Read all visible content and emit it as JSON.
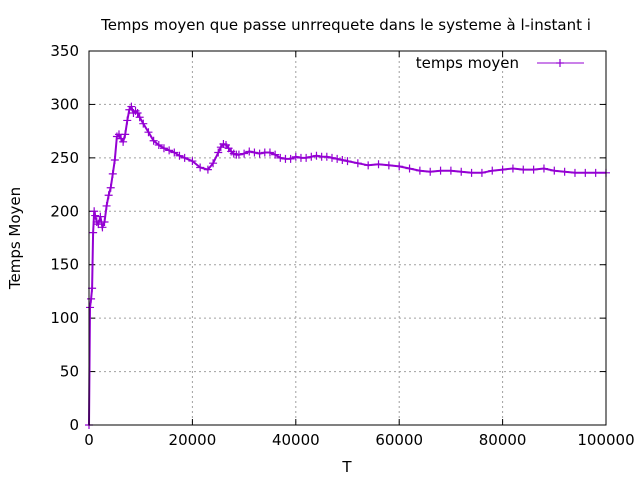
{
  "chart_data": {
    "type": "line",
    "title": "Temps moyen que passe unrrequete dans le systeme à l-instant i",
    "xlabel": "T",
    "ylabel": "Temps Moyen",
    "xlim": [
      0,
      100000
    ],
    "ylim": [
      0,
      350
    ],
    "xticks": [
      0,
      20000,
      40000,
      60000,
      80000,
      100000
    ],
    "xtick_labels": [
      "0",
      "20000",
      "40000",
      "60000",
      "80000",
      "100000"
    ],
    "yticks": [
      0,
      50,
      100,
      150,
      200,
      250,
      300,
      350
    ],
    "ytick_labels": [
      "0",
      "50",
      "100",
      "150",
      "200",
      "250",
      "300",
      "350"
    ],
    "grid": true,
    "legend_position": "top-right",
    "series": [
      {
        "name": "temps moyen",
        "color": "#9400d3",
        "marker": "plus",
        "x": [
          0,
          200,
          400,
          600,
          800,
          1000,
          1200,
          1500,
          1800,
          2200,
          2600,
          3000,
          3400,
          3800,
          4200,
          4600,
          5000,
          5400,
          5800,
          6200,
          6600,
          7000,
          7400,
          7800,
          8200,
          8600,
          9000,
          9400,
          9800,
          10500,
          11500,
          12500,
          13500,
          14500,
          15500,
          16500,
          17500,
          18500,
          20000,
          21500,
          23000,
          24000,
          25000,
          25500,
          26000,
          26500,
          27000,
          27500,
          28000,
          28500,
          29000,
          30000,
          31000,
          32000,
          33000,
          34000,
          35000,
          36000,
          37000,
          38000,
          39000,
          40000,
          41000,
          42000,
          43000,
          44000,
          45000,
          46000,
          47000,
          48000,
          49000,
          50000,
          52000,
          54000,
          56000,
          58000,
          60000,
          62000,
          64000,
          66000,
          68000,
          70000,
          72000,
          74000,
          76000,
          78000,
          80000,
          82000,
          84000,
          86000,
          88000,
          90000,
          92000,
          94000,
          96000,
          98000,
          100000
        ],
        "y": [
          0,
          110,
          118,
          128,
          180,
          200,
          196,
          190,
          188,
          195,
          185,
          190,
          205,
          215,
          222,
          235,
          248,
          270,
          272,
          268,
          265,
          272,
          285,
          295,
          298,
          292,
          294,
          292,
          288,
          282,
          274,
          266,
          262,
          259,
          257,
          255,
          252,
          250,
          247,
          241,
          239,
          245,
          255,
          260,
          263,
          262,
          259,
          256,
          254,
          253,
          253,
          254,
          256,
          255,
          254,
          255,
          255,
          253,
          250,
          249,
          249,
          251,
          250,
          250,
          251,
          252,
          251,
          251,
          250,
          249,
          248,
          247,
          245,
          243,
          244,
          243,
          242,
          240,
          238,
          237,
          238,
          238,
          237,
          236,
          236,
          238,
          239,
          240,
          239,
          239,
          240,
          238,
          237,
          236,
          236,
          236,
          236
        ]
      }
    ]
  }
}
